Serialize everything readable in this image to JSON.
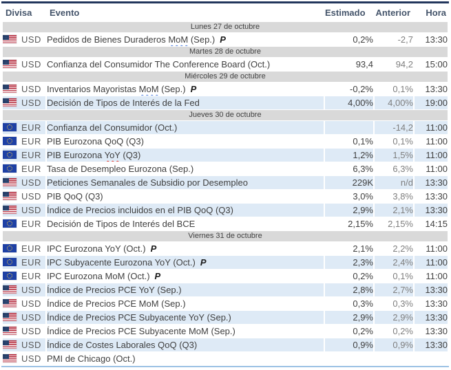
{
  "colors": {
    "accent_top_border": "#22365c",
    "header_text": "#44546a",
    "separator_bg": "#d9d9d9",
    "separator_text": "#404040",
    "alt_row_bg": "#deeaf6",
    "event_text": "#3f3f3f",
    "currency_text": "#595959",
    "estimado_text": "#404040",
    "anterior_text": "#7f7f7f",
    "hora_text": "#404040",
    "bottom_border": "#9cc2e4",
    "squiggle_blue": "#4a7de0",
    "squiggle_red": "#e0392e"
  },
  "calendar": {
    "columns": {
      "divisa": "Divisa",
      "evento": "Evento",
      "estimado": "Estimado",
      "anterior": "Anterior",
      "hora": "Hora"
    },
    "prelim_label": "P",
    "groups": [
      {
        "date": "Lunes 27 de octubre",
        "events": [
          {
            "currency": "USD",
            "flag": "us",
            "event": "Pedidos de Bienes Duraderos MoM (Sep.)",
            "prelim": true,
            "squiggle": {
              "word": "MoM",
              "color": "#4a7de0"
            },
            "estimado": "0,2%",
            "anterior": "-2,7",
            "hora": "13:30"
          }
        ]
      },
      {
        "date": "Martes 28 de octubre",
        "events": [
          {
            "currency": "USD",
            "flag": "us",
            "event": "Confianza del Consumidor The Conference Board (Oct.)",
            "estimado": "93,4",
            "anterior": "94,2",
            "hora": "15:00"
          }
        ]
      },
      {
        "date": "Miércoles 29 de octubre",
        "events": [
          {
            "currency": "USD",
            "flag": "us",
            "event": "Inventarios Mayoristas MoM (Sep.)",
            "prelim": true,
            "squiggle": {
              "word": "MoM",
              "color": "#4a7de0"
            },
            "estimado": "-0,2%",
            "anterior": "0,1%",
            "hora": "13:30"
          },
          {
            "currency": "USD",
            "flag": "us",
            "event": "Decisión de Tipos de Interés de la Fed",
            "estimado": "4,00%",
            "anterior": "4,00%",
            "hora": "19:00"
          }
        ]
      },
      {
        "date": "Jueves 30 de octubre",
        "events": [
          {
            "currency": "EUR",
            "flag": "eu",
            "event": "Confianza del Consumidor (Oct.)",
            "estimado": "",
            "anterior": "-14,2",
            "hora": "11:00"
          },
          {
            "currency": "EUR",
            "flag": "eu",
            "event": "PIB Eurozona QoQ (Q3)",
            "estimado": "0,1%",
            "anterior": "0,1%",
            "hora": "11:00"
          },
          {
            "currency": "EUR",
            "flag": "eu",
            "event": "PIB Eurozona YoY (Q3)",
            "squiggle": {
              "word": "YoY",
              "color": "#e0392e"
            },
            "estimado": "1,2%",
            "anterior": "1,5%",
            "hora": "11:00"
          },
          {
            "currency": "EUR",
            "flag": "eu",
            "event": "Tasa de Desempleo Eurozona (Sep.)",
            "estimado": "6,3%",
            "anterior": "6,3%",
            "hora": "11:00"
          },
          {
            "currency": "USD",
            "flag": "us",
            "event": "Peticiones Semanales de Subsidio por Desempleo",
            "estimado": "229K",
            "anterior": "n/d",
            "hora": "13:30"
          },
          {
            "currency": "USD",
            "flag": "us",
            "event": "PIB QoQ (Q3)",
            "estimado": "3,0%",
            "anterior": "3,8%",
            "hora": "13:30"
          },
          {
            "currency": "USD",
            "flag": "us",
            "event": "Índice de Precios incluidos en el PIB QoQ (Q3)",
            "estimado": "2,9%",
            "anterior": "2,1%",
            "hora": "13:30"
          },
          {
            "currency": "EUR",
            "flag": "eu",
            "event": "Decisión de Tipos de Interés del BCE",
            "estimado": "2,15%",
            "anterior": "2,15%",
            "hora": "14:15"
          }
        ]
      },
      {
        "date": "Viernes 31 de octubre",
        "events": [
          {
            "currency": "EUR",
            "flag": "eu",
            "event": "IPC Eurozona YoY (Oct.)",
            "prelim": true,
            "estimado": "2,1%",
            "anterior": "2,2%",
            "hora": "11:00"
          },
          {
            "currency": "EUR",
            "flag": "eu",
            "event": "IPC Subyacente Eurozona YoY (Oct.)",
            "prelim": true,
            "estimado": "2,3%",
            "anterior": "2,4%",
            "hora": "11:00"
          },
          {
            "currency": "EUR",
            "flag": "eu",
            "event": "IPC Eurozona MoM (Oct.)",
            "prelim": true,
            "estimado": "0,2%",
            "anterior": "0,1%",
            "hora": "11:00"
          },
          {
            "currency": "USD",
            "flag": "us",
            "event": "Índice de Precios PCE YoY (Sep.)",
            "estimado": "2,8%",
            "anterior": "2,7%",
            "hora": "13:30"
          },
          {
            "currency": "USD",
            "flag": "us",
            "event": "Índice de Precios PCE MoM (Sep.)",
            "estimado": "0,3%",
            "anterior": "0,3%",
            "hora": "13:30"
          },
          {
            "currency": "USD",
            "flag": "us",
            "event": "Índice de Precios PCE Subyacente YoY (Sep.)",
            "estimado": "2,9%",
            "anterior": "2,9%",
            "hora": "13:30"
          },
          {
            "currency": "USD",
            "flag": "us",
            "event": "Índice de Precios PCE Subyacente MoM (Sep.)",
            "estimado": "0,2%",
            "anterior": "0,2%",
            "hora": "13:30"
          },
          {
            "currency": "USD",
            "flag": "us",
            "event": "Índice de Costes Laborales QoQ (Q3)",
            "estimado": "0,9%",
            "anterior": "0,9%",
            "hora": "13:30"
          },
          {
            "currency": "USD",
            "flag": "us",
            "event": "PMI de Chicago (Oct.)",
            "estimado": "",
            "anterior": "",
            "hora": ""
          }
        ]
      }
    ]
  }
}
